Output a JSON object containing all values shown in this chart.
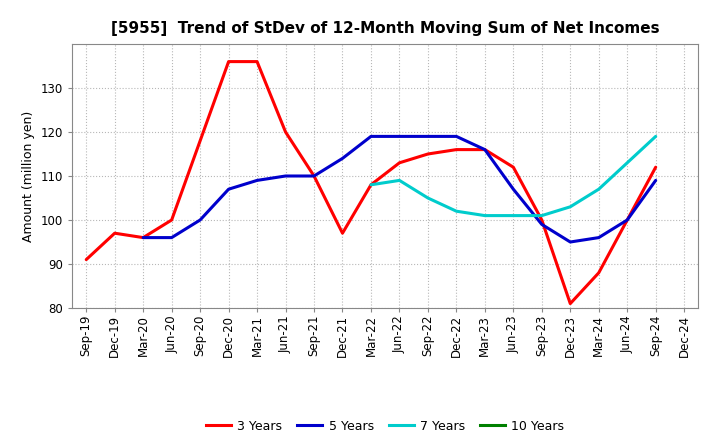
{
  "title": "[5955]  Trend of StDev of 12-Month Moving Sum of Net Incomes",
  "ylabel": "Amount (million yen)",
  "ylim": [
    80,
    140
  ],
  "yticks": [
    80,
    90,
    100,
    110,
    120,
    130
  ],
  "background_color": "#ffffff",
  "plot_bg_color": "#ffffff",
  "grid_color": "#999999",
  "x_labels": [
    "Sep-19",
    "Dec-19",
    "Mar-20",
    "Jun-20",
    "Sep-20",
    "Dec-20",
    "Mar-21",
    "Jun-21",
    "Sep-21",
    "Dec-21",
    "Mar-22",
    "Jun-22",
    "Sep-22",
    "Dec-22",
    "Mar-23",
    "Jun-23",
    "Sep-23",
    "Dec-23",
    "Mar-24",
    "Jun-24",
    "Sep-24",
    "Dec-24"
  ],
  "series": {
    "3 Years": {
      "color": "#ff0000",
      "data": [
        91,
        97,
        96,
        100,
        118,
        136,
        136,
        120,
        110,
        97,
        108,
        113,
        115,
        116,
        116,
        112,
        100,
        81,
        88,
        100,
        112,
        null
      ]
    },
    "5 Years": {
      "color": "#0000cc",
      "data": [
        null,
        null,
        96,
        96,
        100,
        107,
        109,
        110,
        110,
        114,
        119,
        119,
        119,
        119,
        116,
        107,
        99,
        95,
        96,
        100,
        109,
        null
      ]
    },
    "7 Years": {
      "color": "#00cccc",
      "data": [
        null,
        null,
        null,
        null,
        null,
        null,
        null,
        null,
        null,
        null,
        108,
        109,
        105,
        102,
        101,
        101,
        101,
        103,
        107,
        113,
        119,
        null
      ]
    },
    "10 Years": {
      "color": "#008000",
      "data": [
        null,
        null,
        null,
        null,
        null,
        null,
        null,
        null,
        null,
        null,
        null,
        null,
        null,
        null,
        null,
        null,
        null,
        null,
        null,
        null,
        null,
        null
      ]
    }
  },
  "legend_order": [
    "3 Years",
    "5 Years",
    "7 Years",
    "10 Years"
  ],
  "linewidth": 2.2,
  "title_fontsize": 11,
  "axis_fontsize": 8.5,
  "ylabel_fontsize": 9,
  "legend_fontsize": 9
}
